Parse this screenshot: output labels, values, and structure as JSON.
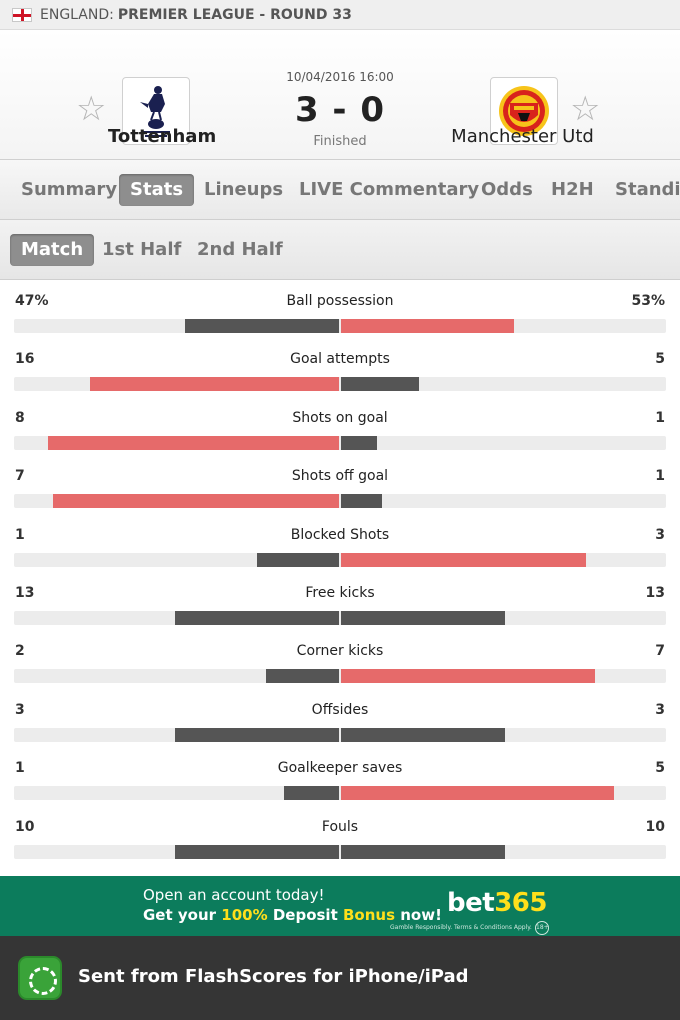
{
  "league": {
    "country": "ENGLAND:",
    "competition": "PREMIER LEAGUE - ROUND 33"
  },
  "match": {
    "datetime": "10/04/2016 16:00",
    "score": "3 - 0",
    "status": "Finished",
    "home_team": "Tottenham",
    "away_team": "Manchester Utd"
  },
  "tabs": [
    "Summary",
    "Stats",
    "Lineups",
    "LIVE Commentary",
    "Odds",
    "H2H",
    "Standi"
  ],
  "subtabs": [
    "Match",
    "1st Half",
    "2nd Half"
  ],
  "stats": [
    {
      "name": "Ball possession",
      "home": "47%",
      "away": "53%",
      "home_val": 47,
      "away_val": 53
    },
    {
      "name": "Goal attempts",
      "home": "16",
      "away": "5",
      "home_val": 16,
      "away_val": 5
    },
    {
      "name": "Shots on goal",
      "home": "8",
      "away": "1",
      "home_val": 8,
      "away_val": 1
    },
    {
      "name": "Shots off goal",
      "home": "7",
      "away": "1",
      "home_val": 7,
      "away_val": 1
    },
    {
      "name": "Blocked Shots",
      "home": "1",
      "away": "3",
      "home_val": 1,
      "away_val": 3
    },
    {
      "name": "Free kicks",
      "home": "13",
      "away": "13",
      "home_val": 13,
      "away_val": 13
    },
    {
      "name": "Corner kicks",
      "home": "2",
      "away": "7",
      "home_val": 2,
      "away_val": 7
    },
    {
      "name": "Offsides",
      "home": "3",
      "away": "3",
      "home_val": 3,
      "away_val": 3
    },
    {
      "name": "Goalkeeper saves",
      "home": "1",
      "away": "5",
      "home_val": 1,
      "away_val": 5
    },
    {
      "name": "Fouls",
      "home": "10",
      "away": "10",
      "home_val": 10,
      "away_val": 10
    }
  ],
  "ad": {
    "line1": "Open an account today!",
    "line2_a": "Get your ",
    "line2_b": "100%",
    "line2_c": " Deposit ",
    "line2_d": "Bonus",
    "line2_e": " now!",
    "brand_a": "bet",
    "brand_b": "365",
    "terms": "Gamble Responsibly. Terms & Conditions Apply.",
    "age": "18+"
  },
  "footer": {
    "text": "Sent from FlashScores for iPhone/iPad"
  },
  "colors": {
    "bar_leading": "#e66a6a",
    "bar_trailing": "#555555",
    "ad_bg": "#0c7c5c",
    "footer_bg": "#353535"
  },
  "icons": {
    "favorite": "star-outline-icon",
    "home_crest": "tottenham-crest-icon",
    "away_crest": "man-utd-crest-icon",
    "flag": "england-flag-icon",
    "app": "flashscore-app-icon"
  }
}
